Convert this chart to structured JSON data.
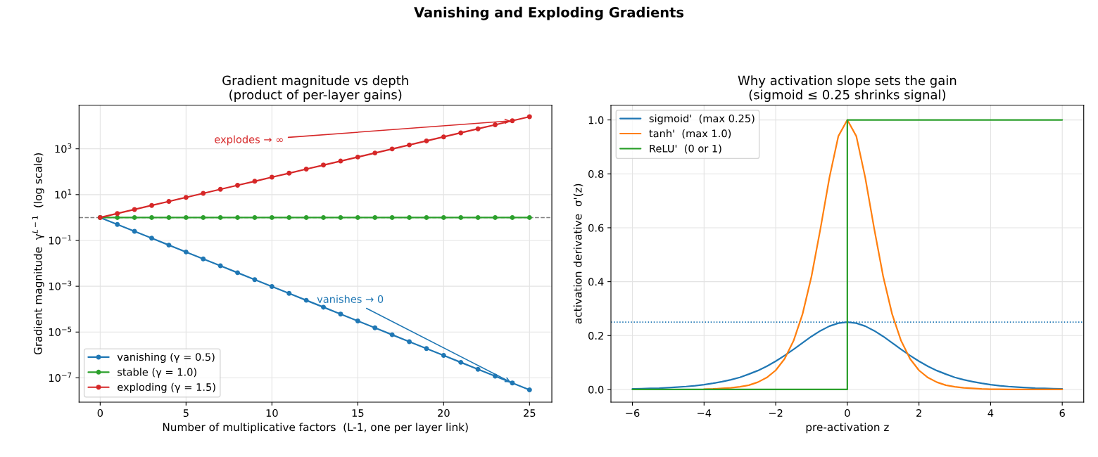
{
  "chart_data": [
    {
      "type": "line",
      "title": "Gradient magnitude vs depth\n(product of per-layer gains)",
      "xlabel": "Number of multiplicative factors  (L-1, one per layer link)",
      "ylabel": "Gradient magnitude  γ$^{L−1}$  (log scale)",
      "annotations": [
        "Vanishing and Exploding Gradients",
        {
          "text": "explodes → ∞",
          "x": 24,
          "y": 16834
        },
        {
          "text": "vanishes → 0",
          "x": 24,
          "y": 5.96e-08
        }
      ],
      "x": [
        0,
        1,
        2,
        3,
        4,
        5,
        6,
        7,
        8,
        9,
        10,
        11,
        12,
        13,
        14,
        15,
        16,
        17,
        18,
        19,
        20,
        21,
        22,
        23,
        24,
        25
      ],
      "series": [
        {
          "name": "vanishing (γ = 0.5)",
          "color": "#1f77b4",
          "values": [
            1,
            0.5,
            0.25,
            0.125,
            0.0625,
            0.0313,
            0.0156,
            0.00781,
            0.00391,
            0.00195,
            0.000977,
            0.000488,
            0.000244,
            0.000122,
            6.1e-05,
            3.05e-05,
            1.53e-05,
            7.63e-06,
            3.81e-06,
            1.91e-06,
            9.54e-07,
            4.77e-07,
            2.38e-07,
            1.19e-07,
            5.96e-08,
            2.98e-08
          ]
        },
        {
          "name": "stable (γ = 1.0)",
          "color": "#2ca02c",
          "values": [
            1,
            1,
            1,
            1,
            1,
            1,
            1,
            1,
            1,
            1,
            1,
            1,
            1,
            1,
            1,
            1,
            1,
            1,
            1,
            1,
            1,
            1,
            1,
            1,
            1,
            1
          ]
        },
        {
          "name": "exploding (γ = 1.5)",
          "color": "#d62728",
          "values": [
            1,
            1.5,
            2.25,
            3.38,
            5.06,
            7.59,
            11.4,
            17.1,
            25.6,
            38.4,
            57.7,
            86.5,
            130,
            195,
            292,
            438,
            657,
            985,
            1478,
            2217,
            3325,
            4988,
            7482,
            11223,
            16834,
            25251
          ]
        }
      ],
      "log": "y",
      "xlim": [
        -1.23,
        26.3
      ],
      "ylim": [
        8.7e-09,
        81000
      ],
      "xticks": [
        0,
        5,
        10,
        15,
        20,
        25
      ],
      "yticks": [
        {
          "value": 1e-07,
          "label": "10$^{−7}$"
        },
        {
          "value": 1e-05,
          "label": "10$^{−5}$"
        },
        {
          "value": 0.001,
          "label": "10$^{−3}$"
        },
        {
          "value": 0.1,
          "label": "10$^{−1}$"
        },
        {
          "value": 10,
          "label": "10$^{1}$"
        },
        {
          "value": 1000,
          "label": "10$^{3}$"
        }
      ],
      "ref_lines": [
        {
          "axis": "y",
          "value": 1,
          "color": "#808080",
          "line_style": "dashed"
        }
      ],
      "grid": true,
      "legend": "bottom left",
      "marker": "circle",
      "line_style": "solid"
    },
    {
      "type": "line",
      "title": "Why activation slope sets the gain\n(sigmoid ≤ 0.25 shrinks signal)",
      "xlabel": "pre-activation z",
      "ylabel": "activation derivative  σ'(z)",
      "series": [
        {
          "name": "sigmoid'  (max 0.25)",
          "color": "#1f77b4",
          "x": [
            -6,
            -5.75,
            -5.5,
            -5.25,
            -5,
            -4.75,
            -4.5,
            -4.25,
            -4,
            -3.75,
            -3.5,
            -3.25,
            -3,
            -2.75,
            -2.5,
            -2.25,
            -2,
            -1.75,
            -1.5,
            -1.25,
            -1,
            -0.75,
            -0.5,
            -0.25,
            0,
            0.25,
            0.5,
            0.75,
            1,
            1.25,
            1.5,
            1.75,
            2,
            2.25,
            2.5,
            2.75,
            3,
            3.25,
            3.5,
            3.75,
            4,
            4.25,
            4.5,
            4.75,
            5,
            5.25,
            5.5,
            5.75,
            6
          ],
          "values": [
            0.002,
            0.003,
            0.004,
            0.005,
            0.007,
            0.009,
            0.011,
            0.014,
            0.018,
            0.023,
            0.029,
            0.036,
            0.045,
            0.057,
            0.07,
            0.086,
            0.105,
            0.126,
            0.149,
            0.173,
            0.197,
            0.218,
            0.235,
            0.246,
            0.25,
            0.246,
            0.235,
            0.218,
            0.197,
            0.173,
            0.149,
            0.126,
            0.105,
            0.086,
            0.07,
            0.057,
            0.045,
            0.036,
            0.029,
            0.023,
            0.018,
            0.014,
            0.011,
            0.009,
            0.007,
            0.005,
            0.004,
            0.003,
            0.002
          ]
        },
        {
          "name": "tanh'  (max 1.0)",
          "color": "#ff7f0e",
          "x": [
            -4,
            -3.75,
            -3.5,
            -3.25,
            -3,
            -2.75,
            -2.5,
            -2.25,
            -2,
            -1.75,
            -1.5,
            -1.25,
            -1,
            -0.75,
            -0.5,
            -0.25,
            0,
            0.25,
            0.5,
            0.75,
            1,
            1.25,
            1.5,
            1.75,
            2,
            2.25,
            2.5,
            2.75,
            3,
            3.25,
            3.5,
            3.75,
            4,
            4.25,
            4.5,
            4.75,
            5,
            5.25,
            5.5,
            5.75,
            6
          ],
          "values": [
            0.001,
            0.002,
            0.004,
            0.006,
            0.01,
            0.016,
            0.027,
            0.044,
            0.071,
            0.114,
            0.181,
            0.28,
            0.42,
            0.597,
            0.786,
            0.94,
            1,
            0.94,
            0.786,
            0.597,
            0.42,
            0.28,
            0.181,
            0.114,
            0.071,
            0.044,
            0.027,
            0.016,
            0.01,
            0.006,
            0.004,
            0.002,
            0.001,
            0.001,
            0,
            0,
            0,
            0,
            0,
            0,
            0
          ]
        },
        {
          "name": "ReLU'  (0 or 1)",
          "color": "#2ca02c",
          "x": [
            -6,
            0,
            0,
            6
          ],
          "values": [
            0,
            0,
            1,
            1
          ]
        }
      ],
      "xlim": [
        -6.6,
        6.6
      ],
      "ylim": [
        -0.047,
        1.055
      ],
      "xticks": [
        {
          "value": -6,
          "label": "−6"
        },
        {
          "value": -4,
          "label": "−4"
        },
        {
          "value": -2,
          "label": "−2"
        },
        0,
        2,
        4,
        6
      ],
      "yticks": [
        {
          "value": 0,
          "label": "0.0"
        },
        {
          "value": 0.2,
          "label": "0.2"
        },
        {
          "value": 0.4,
          "label": "0.4"
        },
        {
          "value": 0.6,
          "label": "0.6"
        },
        {
          "value": 0.8,
          "label": "0.8"
        },
        {
          "value": 1,
          "label": "1.0"
        }
      ],
      "ref_lines": [
        {
          "axis": "y",
          "value": 0.25,
          "color": "#1f77b4",
          "line_style": "dotted"
        }
      ],
      "grid": true,
      "legend": "top left",
      "marker": "none",
      "line_style": "solid"
    }
  ]
}
